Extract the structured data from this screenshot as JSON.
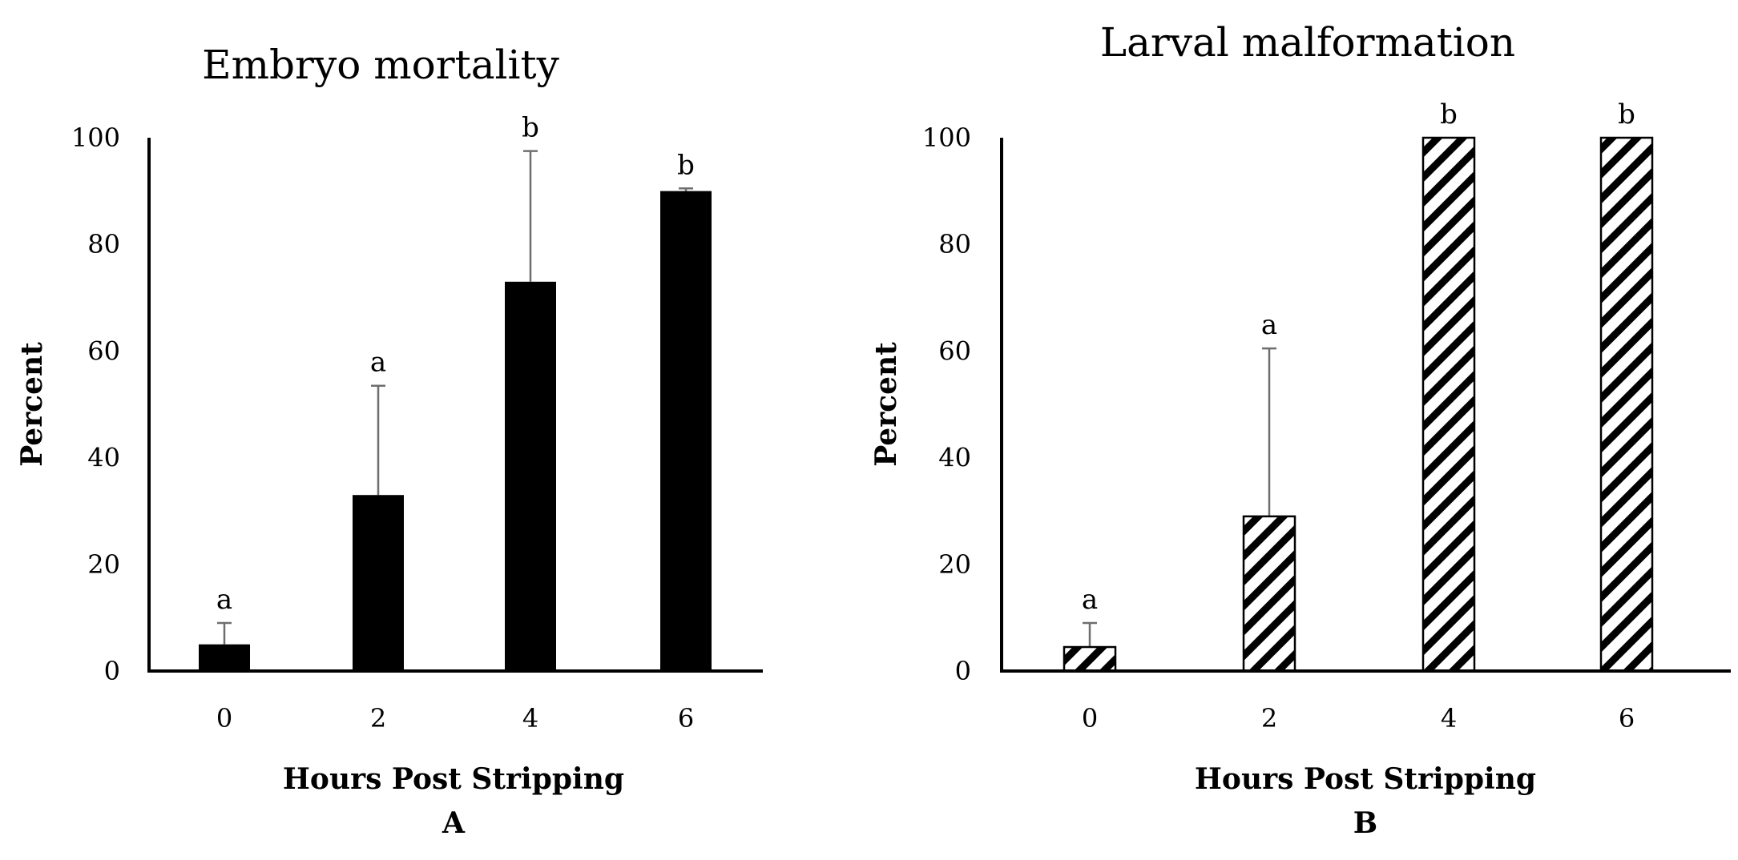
{
  "chart_data": [
    {
      "type": "bar",
      "title": "Embryo mortality",
      "xlabel": "Hours Post Stripping",
      "ylabel": "Percent",
      "panel_label": "A",
      "categories": [
        "0",
        "2",
        "4",
        "6"
      ],
      "values": [
        5,
        33,
        73,
        90
      ],
      "error": [
        4,
        20.5,
        24.5,
        0.5
      ],
      "significance": [
        "a",
        "a",
        "b",
        "b"
      ],
      "ylim": [
        0,
        100
      ],
      "yticks": [
        "0",
        "20",
        "40",
        "60",
        "80",
        "100"
      ],
      "fill": "solid",
      "color": "#000000"
    },
    {
      "type": "bar",
      "title": "Larval malformation",
      "xlabel": "Hours Post Stripping",
      "ylabel": "Percent",
      "panel_label": "B",
      "categories": [
        "0",
        "2",
        "4",
        "6"
      ],
      "values": [
        4.5,
        29,
        100,
        100
      ],
      "error": [
        4.5,
        31.5,
        0,
        0
      ],
      "significance": [
        "a",
        "a",
        "b",
        "b"
      ],
      "ylim": [
        0,
        100
      ],
      "yticks": [
        "0",
        "20",
        "40",
        "60",
        "80",
        "100"
      ],
      "fill": "diagonal-hatch",
      "color": "#000000"
    }
  ]
}
